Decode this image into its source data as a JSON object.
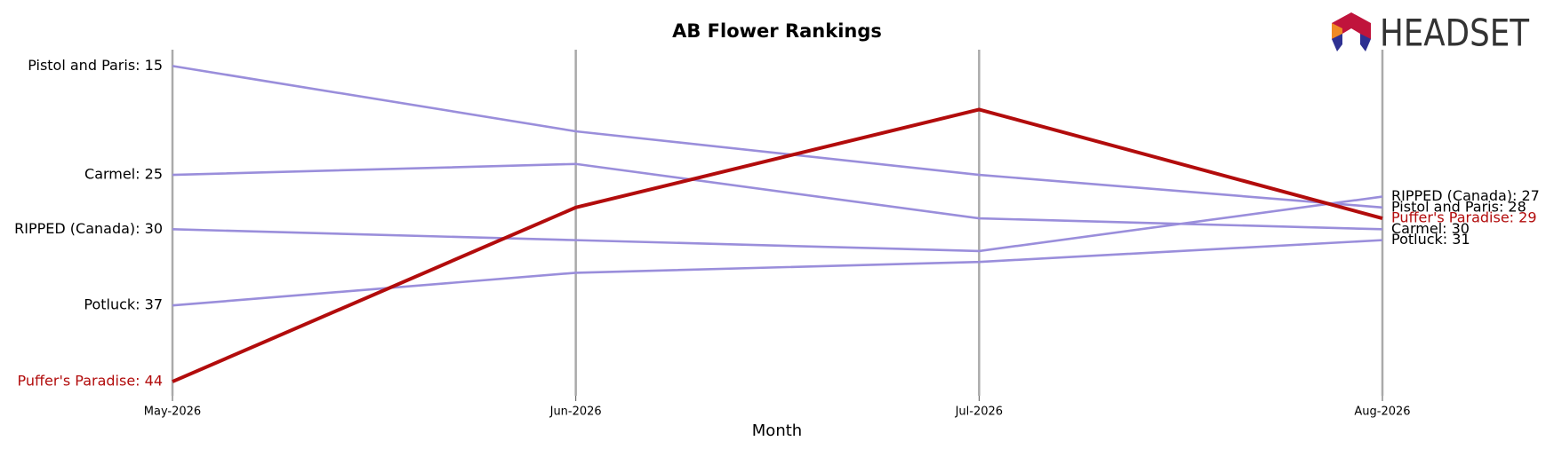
{
  "chart_data": {
    "type": "line",
    "title": "AB Flower Rankings",
    "xlabel": "Month",
    "categories": [
      "May-2026",
      "Jun-2026",
      "Jul-2026",
      "Aug-2026"
    ],
    "ylim": [
      45.3,
      13.5
    ],
    "grid": true,
    "series": [
      {
        "name": "Pistol and Paris",
        "color": "#9a8edb",
        "label_color": "#000000",
        "values": [
          15,
          21,
          25,
          28
        ],
        "value_labels": [
          "Pistol and Paris: 15",
          null,
          null,
          "Pistol and Paris: 28"
        ]
      },
      {
        "name": "Carmel",
        "color": "#9a8edb",
        "label_color": "#000000",
        "values": [
          25,
          24,
          29,
          30
        ],
        "value_labels": [
          "Carmel: 25",
          null,
          null,
          "Carmel: 30"
        ]
      },
      {
        "name": "RIPPED (Canada)",
        "color": "#9a8edb",
        "label_color": "#000000",
        "values": [
          30,
          31,
          32,
          27
        ],
        "value_labels": [
          "RIPPED (Canada): 30",
          null,
          null,
          "RIPPED (Canada): 27"
        ]
      },
      {
        "name": "Potluck",
        "color": "#9a8edb",
        "label_color": "#000000",
        "values": [
          37,
          34,
          33,
          31
        ],
        "value_labels": [
          "Potluck: 37",
          null,
          null,
          "Potluck: 31"
        ]
      },
      {
        "name": "Puffer's Paradise",
        "color": "#b20c0c",
        "label_color": "#b20c0c",
        "values": [
          44,
          28,
          19,
          29
        ],
        "value_labels": [
          "Puffer's Paradise: 44",
          null,
          null,
          "Puffer's Paradise: 29"
        ]
      }
    ]
  },
  "logo": {
    "text": "HEADSET"
  }
}
